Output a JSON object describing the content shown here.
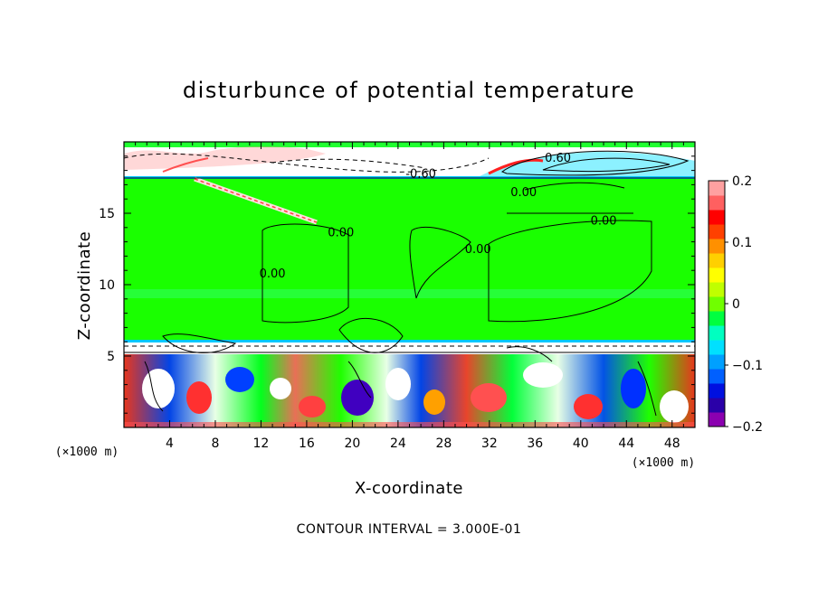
{
  "chart_data": {
    "type": "heatmap",
    "title": "disturbunce of potential temperature",
    "xlabel": "X-coordinate",
    "ylabel": "Z-coordinate",
    "x_unit": "(×1000 m)",
    "x_unit_right": "(×1000 m)",
    "xlim": [
      0,
      50
    ],
    "ylim": [
      0,
      20
    ],
    "x_ticks": [
      4,
      8,
      12,
      16,
      20,
      24,
      28,
      32,
      36,
      40,
      44,
      48
    ],
    "y_ticks": [
      5,
      10,
      15
    ],
    "colorbar": {
      "range": [
        -0.2,
        0.2
      ],
      "ticks": [
        {
          "value": 0.2,
          "label": "0.2"
        },
        {
          "value": 0.1,
          "label": "0.1"
        },
        {
          "value": 0,
          "label": "0"
        },
        {
          "value": -0.1,
          "label": "−0.1"
        },
        {
          "value": -0.2,
          "label": "−0.2"
        }
      ],
      "colors": [
        "#8b00b0",
        "#2a00a8",
        "#0010e0",
        "#0060ff",
        "#00a0ff",
        "#00e0ff",
        "#00ffc0",
        "#00ff40",
        "#70ff00",
        "#c0ff00",
        "#ffff00",
        "#ffd000",
        "#ff9000",
        "#ff4000",
        "#ff0000",
        "#ff6060",
        "#ffa0a0"
      ]
    },
    "contour_labels": [
      {
        "x": 26,
        "z": 17.5,
        "text": "-0.60"
      },
      {
        "x": 38,
        "z": 18.6,
        "text": "0.60"
      },
      {
        "x": 35,
        "z": 16.2,
        "text": "0.00"
      },
      {
        "x": 42,
        "z": 14.2,
        "text": "0.00"
      },
      {
        "x": 31,
        "z": 12.2,
        "text": "0.00"
      },
      {
        "x": 19,
        "z": 13.4,
        "text": "0.00"
      },
      {
        "x": 13,
        "z": 10.5,
        "text": "0.00"
      }
    ],
    "contour_interval_text": "CONTOUR INTERVAL = 3.000E-01"
  }
}
